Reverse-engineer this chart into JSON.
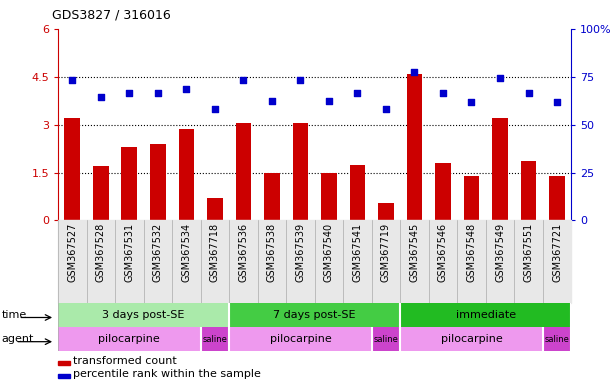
{
  "title": "GDS3827 / 316016",
  "samples": [
    "GSM367527",
    "GSM367528",
    "GSM367531",
    "GSM367532",
    "GSM367534",
    "GSM367718",
    "GSM367536",
    "GSM367538",
    "GSM367539",
    "GSM367540",
    "GSM367541",
    "GSM367719",
    "GSM367545",
    "GSM367546",
    "GSM367548",
    "GSM367549",
    "GSM367551",
    "GSM367721"
  ],
  "bar_values": [
    3.2,
    1.7,
    2.3,
    2.4,
    2.85,
    0.7,
    3.05,
    1.5,
    3.05,
    1.5,
    1.75,
    0.55,
    4.6,
    1.8,
    1.4,
    3.2,
    1.85,
    1.4
  ],
  "dot_values_left": [
    4.4,
    3.85,
    4.0,
    4.0,
    4.1,
    3.5,
    4.4,
    3.75,
    4.4,
    3.75,
    4.0,
    3.5,
    4.65,
    4.0,
    3.7,
    4.45,
    4.0,
    3.7
  ],
  "bar_color": "#cc0000",
  "dot_color": "#0000cc",
  "ylim_left": [
    0,
    6
  ],
  "ylim_right": [
    0,
    100
  ],
  "yticks_left": [
    0,
    1.5,
    3.0,
    4.5,
    6.0
  ],
  "ytick_labels_left": [
    "0",
    "1.5",
    "3",
    "4.5",
    "6"
  ],
  "yticks_right": [
    0,
    25,
    50,
    75,
    100
  ],
  "ytick_labels_right": [
    "0",
    "25",
    "50",
    "75",
    "100%"
  ],
  "hlines": [
    1.5,
    3.0,
    4.5
  ],
  "time_groups": [
    {
      "label": "3 days post-SE",
      "start": 0,
      "end": 5,
      "color": "#aaeaaa"
    },
    {
      "label": "7 days post-SE",
      "start": 6,
      "end": 11,
      "color": "#44cc44"
    },
    {
      "label": "immediate",
      "start": 12,
      "end": 17,
      "color": "#22bb22"
    }
  ],
  "agent_groups": [
    {
      "label": "pilocarpine",
      "start": 0,
      "end": 4,
      "color": "#ee99ee"
    },
    {
      "label": "saline",
      "start": 5,
      "end": 5,
      "color": "#cc44cc"
    },
    {
      "label": "pilocarpine",
      "start": 6,
      "end": 10,
      "color": "#ee99ee"
    },
    {
      "label": "saline",
      "start": 11,
      "end": 11,
      "color": "#cc44cc"
    },
    {
      "label": "pilocarpine",
      "start": 12,
      "end": 16,
      "color": "#ee99ee"
    },
    {
      "label": "saline",
      "start": 17,
      "end": 17,
      "color": "#cc44cc"
    }
  ],
  "legend_bar_label": "transformed count",
  "legend_dot_label": "percentile rank within the sample",
  "bg_color": "#ffffff",
  "bar_width": 0.55,
  "sample_col_color": "#e8e8e8",
  "sample_col_border": "#aaaaaa"
}
